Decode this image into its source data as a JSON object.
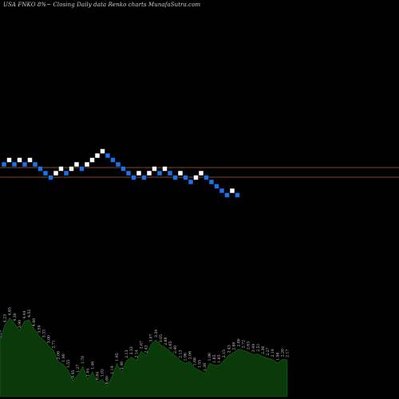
{
  "header": {
    "title": "USA FNKO 8%~   Closing Daily data  Renko  charts MunafaSutra.com"
  },
  "colors": {
    "background": "#000000",
    "up_brick": "#ffffff",
    "down_brick": "#1a73e8",
    "level_lines": "#b05a2a",
    "volume_fill": "#0a3a0a",
    "volume_stroke": "#1a6a1a"
  },
  "chart_data": [
    {
      "type": "renko",
      "up_color": "#ffffff",
      "down_color": "#1a73e8",
      "brick_directions": [
        "down",
        "up",
        "down",
        "up",
        "down",
        "up",
        "down",
        "down",
        "down",
        "down",
        "up",
        "up",
        "down",
        "up",
        "up",
        "down",
        "up",
        "up",
        "up",
        "up",
        "down",
        "down",
        "down",
        "down",
        "down",
        "down",
        "up",
        "down",
        "up",
        "up",
        "down",
        "up",
        "down",
        "down",
        "up",
        "down",
        "down",
        "up",
        "up",
        "down",
        "down",
        "down",
        "down",
        "down",
        "up",
        "down"
      ],
      "horizontal_levels": 2,
      "grid": false
    },
    {
      "type": "area",
      "series": [
        {
          "values": [
            3.29,
            4.23,
            4.65,
            4.3,
            3.9,
            4.44,
            4.52,
            4.0,
            3.59,
            3.33,
            3.0,
            2.71,
            2.06,
            1.9,
            1.55,
            0.95,
            1.27,
            1.78,
            1.04,
            1.46,
            0.84,
            1.02,
            0.6,
            1.19,
            1.95,
            1.46,
            2.13,
            2.33,
            2.14,
            2.67,
            2.42,
            3.07,
            3.34,
            3.05,
            2.88,
            2.65,
            2.4,
            2.13,
            1.96,
            2.06,
            1.68,
            1.55,
            1.36,
            1.96,
            1.85,
            1.85,
            2.15,
            2.43,
            2.6,
            2.8,
            2.72,
            2.63,
            2.49,
            2.51,
            2.36,
            2.27,
            2.19,
            1.98,
            2.2,
            2.17
          ]
        }
      ],
      "data_labels": [
        "3.29",
        "4.23",
        "4.65",
        "4.30",
        "3.90",
        "4.44",
        "4.52",
        "4.00",
        "3.59",
        "3.33",
        "3.00",
        "2.71",
        "2.06",
        "1.90",
        "1.55",
        "0.95",
        "1.27",
        "1.78",
        "1.04",
        "1.46",
        "0.84",
        "1.02",
        "0.60",
        "1.19",
        "1.95",
        "1.46",
        "2.13",
        "2.33",
        "2.14",
        "2.67",
        "2.42",
        "3.07",
        "3.34",
        "3.05",
        "2.88",
        "2.65",
        "2.40",
        "2.13",
        "1.96",
        "2.06",
        "1.68",
        "1.55",
        "1.36",
        "1.96",
        "1.85",
        "1.85",
        "2.15",
        "2.43",
        "2.60",
        "2.80",
        "2.72",
        "2.63",
        "2.49",
        "2.51",
        "2.36",
        "2.27",
        "2.19",
        "1.98",
        "2.20",
        "2.17"
      ]
    }
  ]
}
